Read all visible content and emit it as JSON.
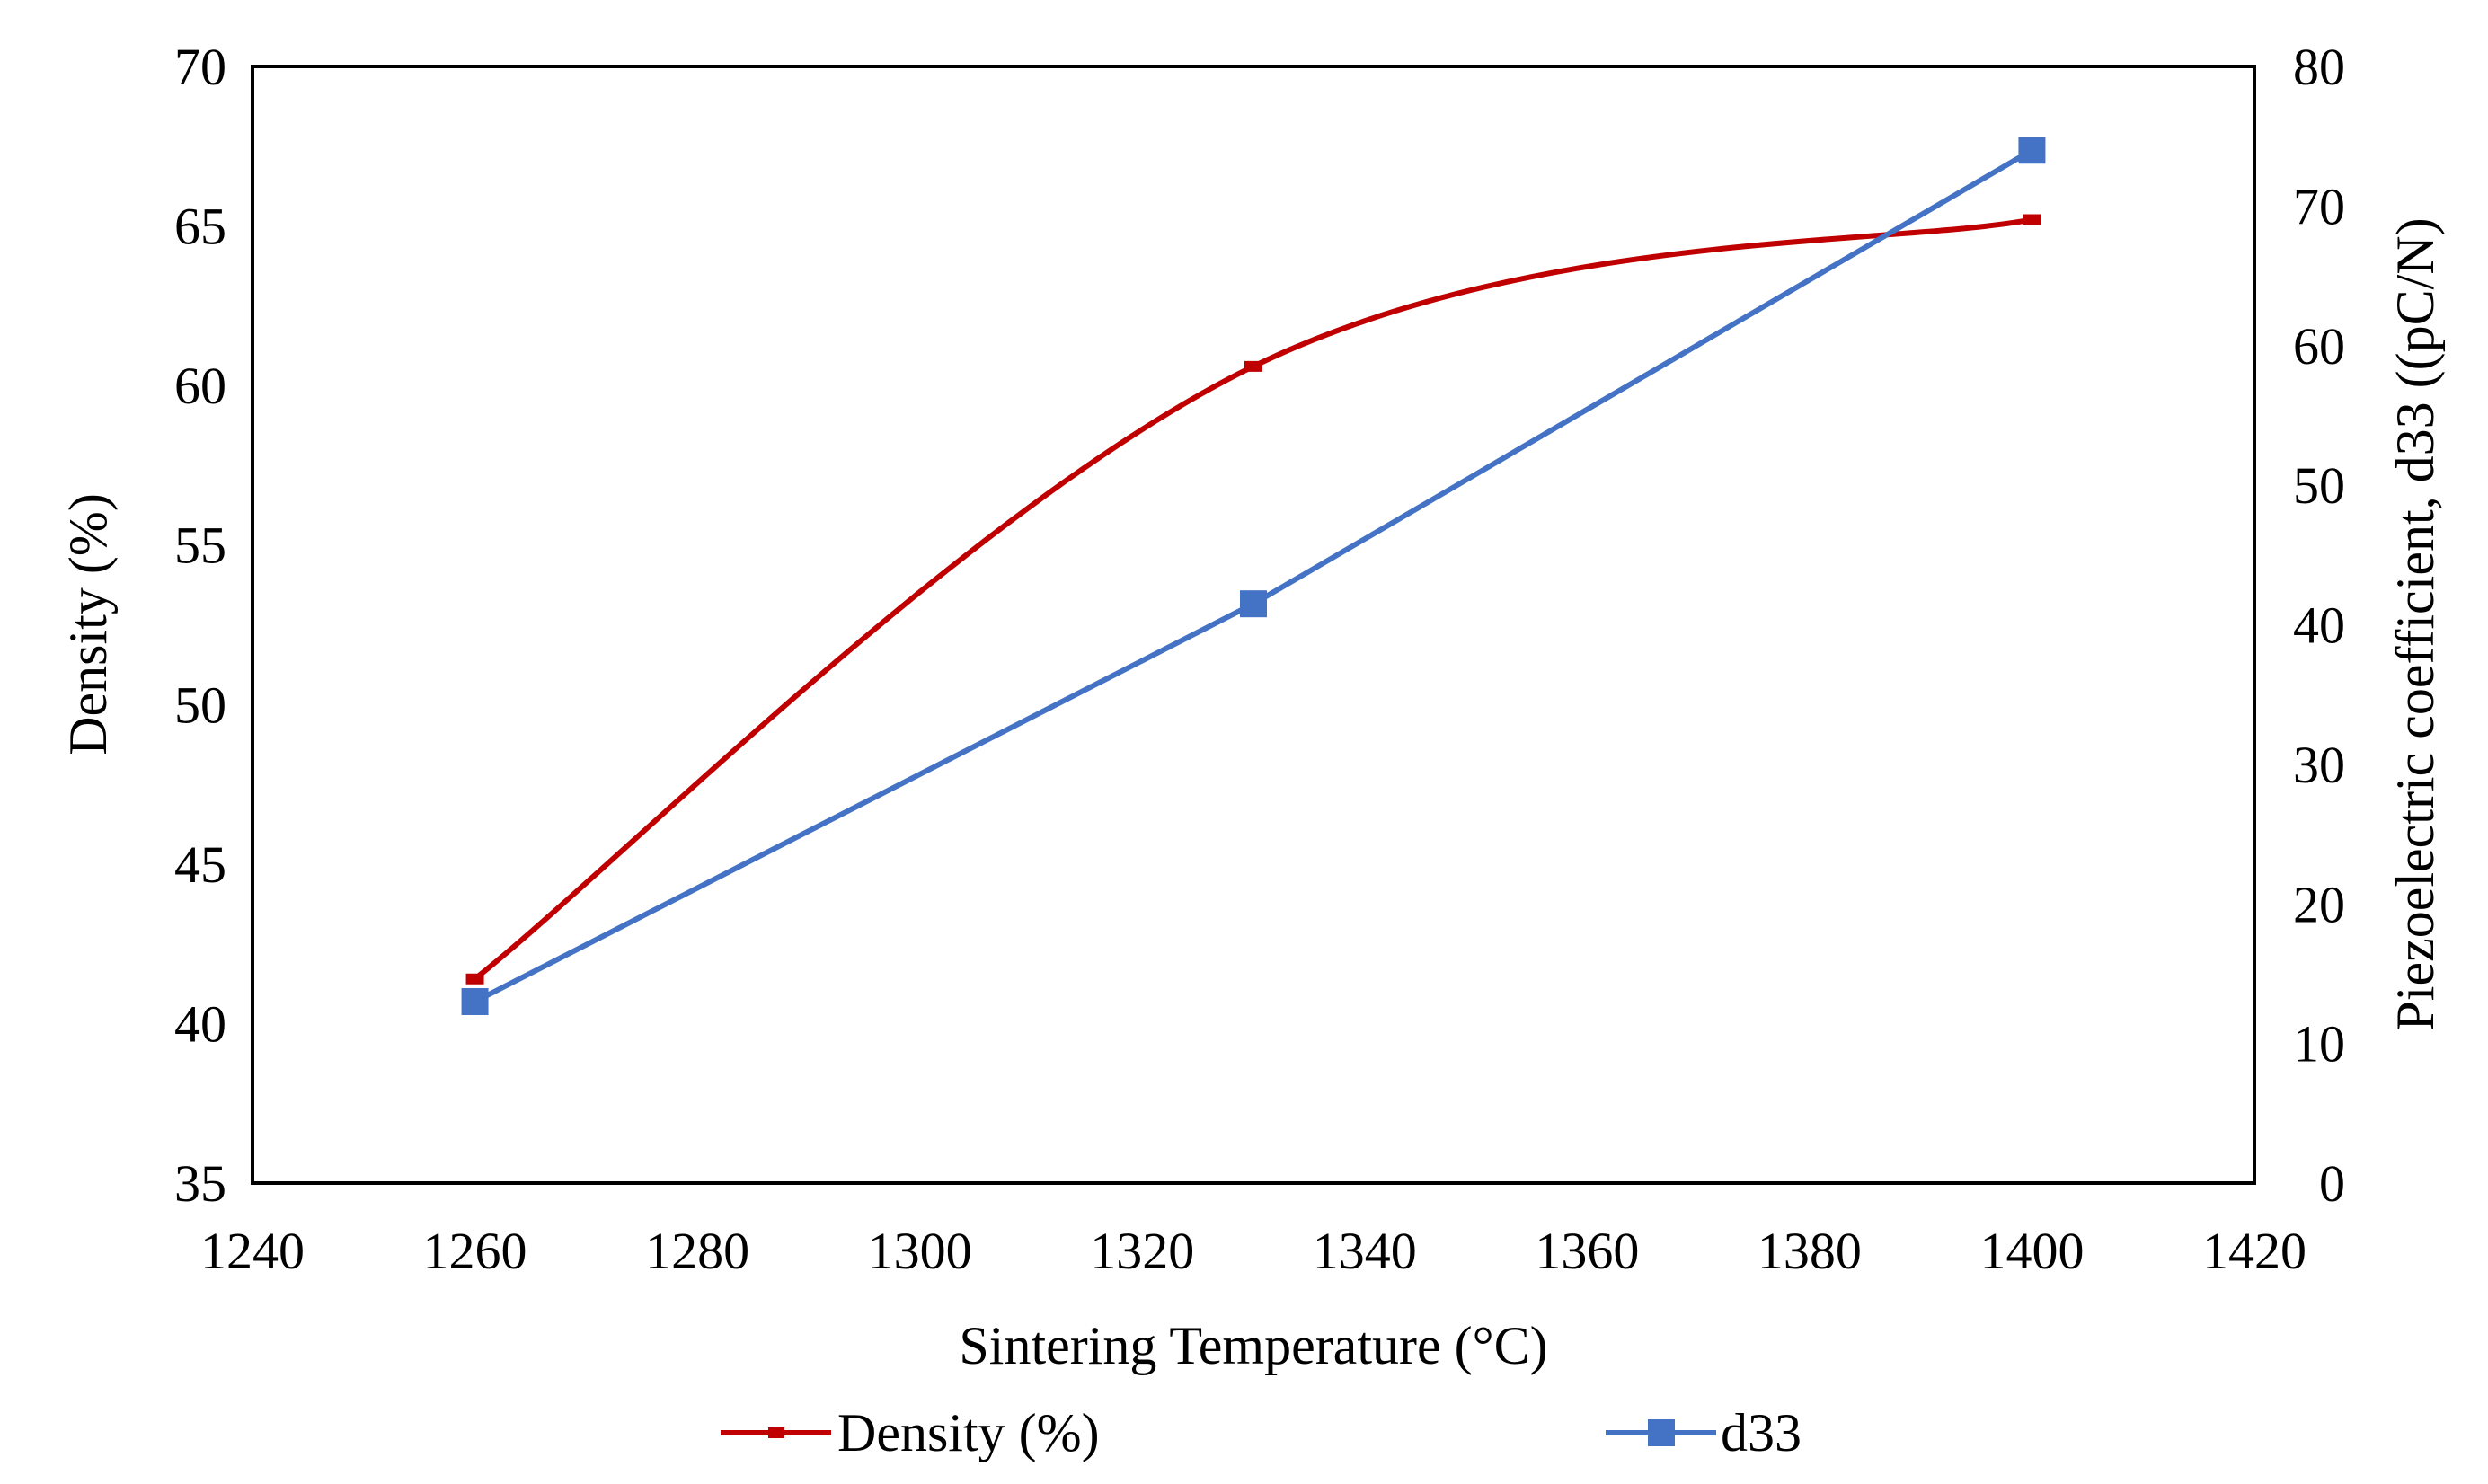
{
  "chart_data": {
    "type": "line",
    "title": "",
    "xlabel": "Sintering Temperature (°C)",
    "ylabel": "Density (%)",
    "y2label": "Piezoelectric coefficient, d33 ((pC/N)",
    "xlim": [
      1240,
      1420
    ],
    "ylim": [
      35,
      70
    ],
    "y2lim": [
      0,
      80
    ],
    "grid": false,
    "legend_position": "bottom",
    "x_ticks": [
      1240,
      1260,
      1280,
      1300,
      1320,
      1340,
      1360,
      1380,
      1400,
      1420
    ],
    "y_ticks": [
      35,
      40,
      45,
      50,
      55,
      60,
      65,
      70
    ],
    "y2_ticks": [
      0,
      10,
      20,
      30,
      40,
      50,
      60,
      70,
      80
    ],
    "series": [
      {
        "name": "Density (%)",
        "axis": "left",
        "color": "#C00000",
        "marker": "dash",
        "smooth": true,
        "x": [
          1260,
          1330,
          1400
        ],
        "values": [
          41.4,
          60.6,
          65.2
        ]
      },
      {
        "name": "d33",
        "axis": "right",
        "color": "#4472C4",
        "marker": "square",
        "smooth": false,
        "x": [
          1260,
          1330,
          1400
        ],
        "values": [
          13.0,
          41.5,
          74.0
        ]
      }
    ]
  }
}
